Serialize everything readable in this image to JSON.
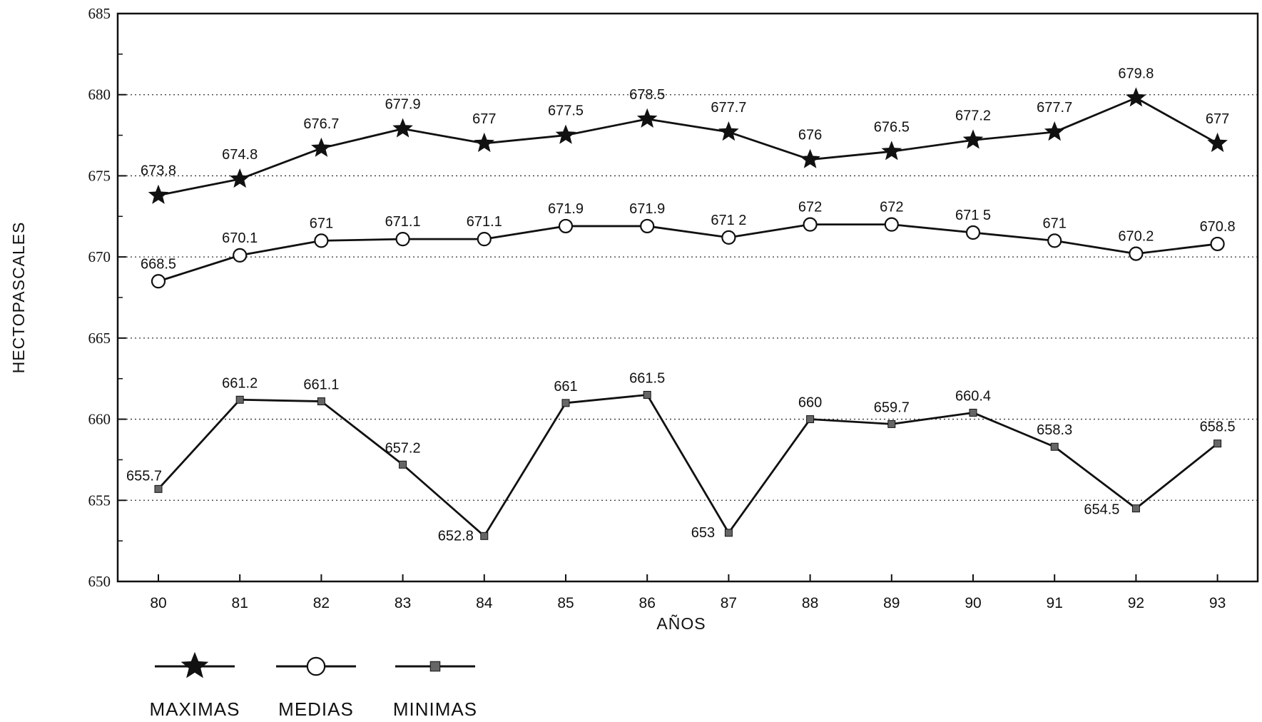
{
  "chart_data": {
    "type": "line",
    "xlabel": "AÑOS",
    "ylabel": "HECTOPASCALES",
    "ylim": [
      650,
      685
    ],
    "yticks": [
      "650",
      "655",
      "660",
      "665",
      "670",
      "675",
      "680",
      "685"
    ],
    "categories": [
      "80",
      "81",
      "82",
      "83",
      "84",
      "85",
      "86",
      "87",
      "88",
      "89",
      "90",
      "91",
      "92",
      "93"
    ],
    "grid": "horizontal dotted",
    "legend_position": "bottom-left",
    "series": [
      {
        "name": "MAXIMAS",
        "marker": "star",
        "values": [
          673.8,
          674.8,
          676.7,
          677.9,
          677,
          677.5,
          678.5,
          677.7,
          676,
          676.5,
          677.2,
          677.7,
          679.8,
          677
        ],
        "labels": [
          "673.8",
          "674.8",
          "676.7",
          "677.9",
          "677",
          "677.5",
          "678.5",
          "677.7",
          "676",
          "676.5",
          "677.2",
          "677.7",
          "679.8",
          "677"
        ]
      },
      {
        "name": "MEDIAS",
        "marker": "circle",
        "values": [
          668.5,
          670.1,
          671,
          671.1,
          671.1,
          671.9,
          671.9,
          671.2,
          672,
          672,
          671.5,
          671,
          670.2,
          670.8
        ],
        "labels": [
          "668.5",
          "670.1",
          "671",
          "671.1",
          "671.1",
          "671.9",
          "671.9",
          "671 2",
          "672",
          "672",
          "671 5",
          "671",
          "670.2",
          "670.8"
        ]
      },
      {
        "name": "MINIMAS",
        "marker": "square",
        "values": [
          655.7,
          661.2,
          661.1,
          657.2,
          652.8,
          661,
          661.5,
          653,
          660,
          659.7,
          660.4,
          658.3,
          654.5,
          658.5
        ],
        "labels": [
          "655.7",
          "661.2",
          "661.1",
          "657.2",
          "652.8",
          "661",
          "661.5",
          "653",
          "660",
          "659.7",
          "660.4",
          "658.3",
          "654.5",
          "658.5"
        ]
      }
    ]
  }
}
